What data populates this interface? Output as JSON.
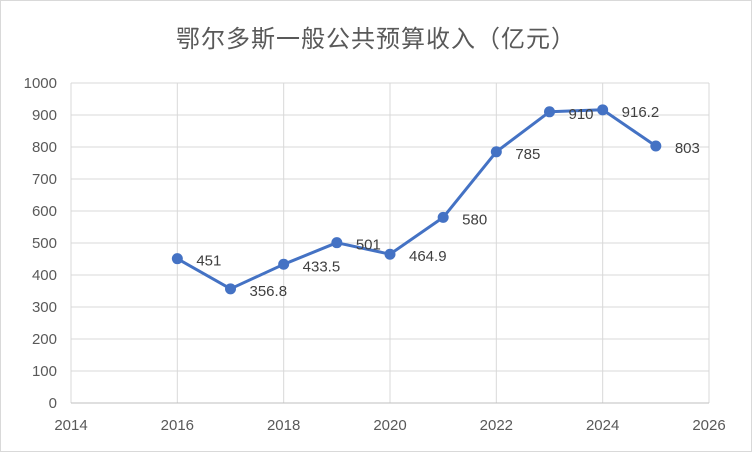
{
  "chart_data": {
    "type": "line",
    "title": "鄂尔多斯一般公共预算收入（亿元）",
    "x": [
      2016,
      2017,
      2018,
      2019,
      2020,
      2021,
      2022,
      2023,
      2024,
      2025
    ],
    "series": [
      {
        "values": [
          451,
          356.8,
          433.5,
          501,
          464.9,
          580,
          785,
          910,
          916.2,
          803
        ],
        "labels": [
          "451",
          "356.8",
          "433.5",
          "501",
          "464.9",
          "580",
          "785",
          "910",
          "916.2",
          "803"
        ]
      }
    ],
    "xlim": [
      2014,
      2026
    ],
    "ylim": [
      0,
      1000
    ],
    "xticks": [
      "2014",
      "2016",
      "2018",
      "2020",
      "2022",
      "2024",
      "2026"
    ],
    "yticks": [
      "0",
      "100",
      "200",
      "300",
      "400",
      "500",
      "600",
      "700",
      "800",
      "900",
      "1000"
    ],
    "grid": true,
    "legend": "none",
    "colors": {
      "line": "#4472c4",
      "grid": "#d9d9d9",
      "axis": "#bfbfbf",
      "text": "#595959"
    }
  }
}
